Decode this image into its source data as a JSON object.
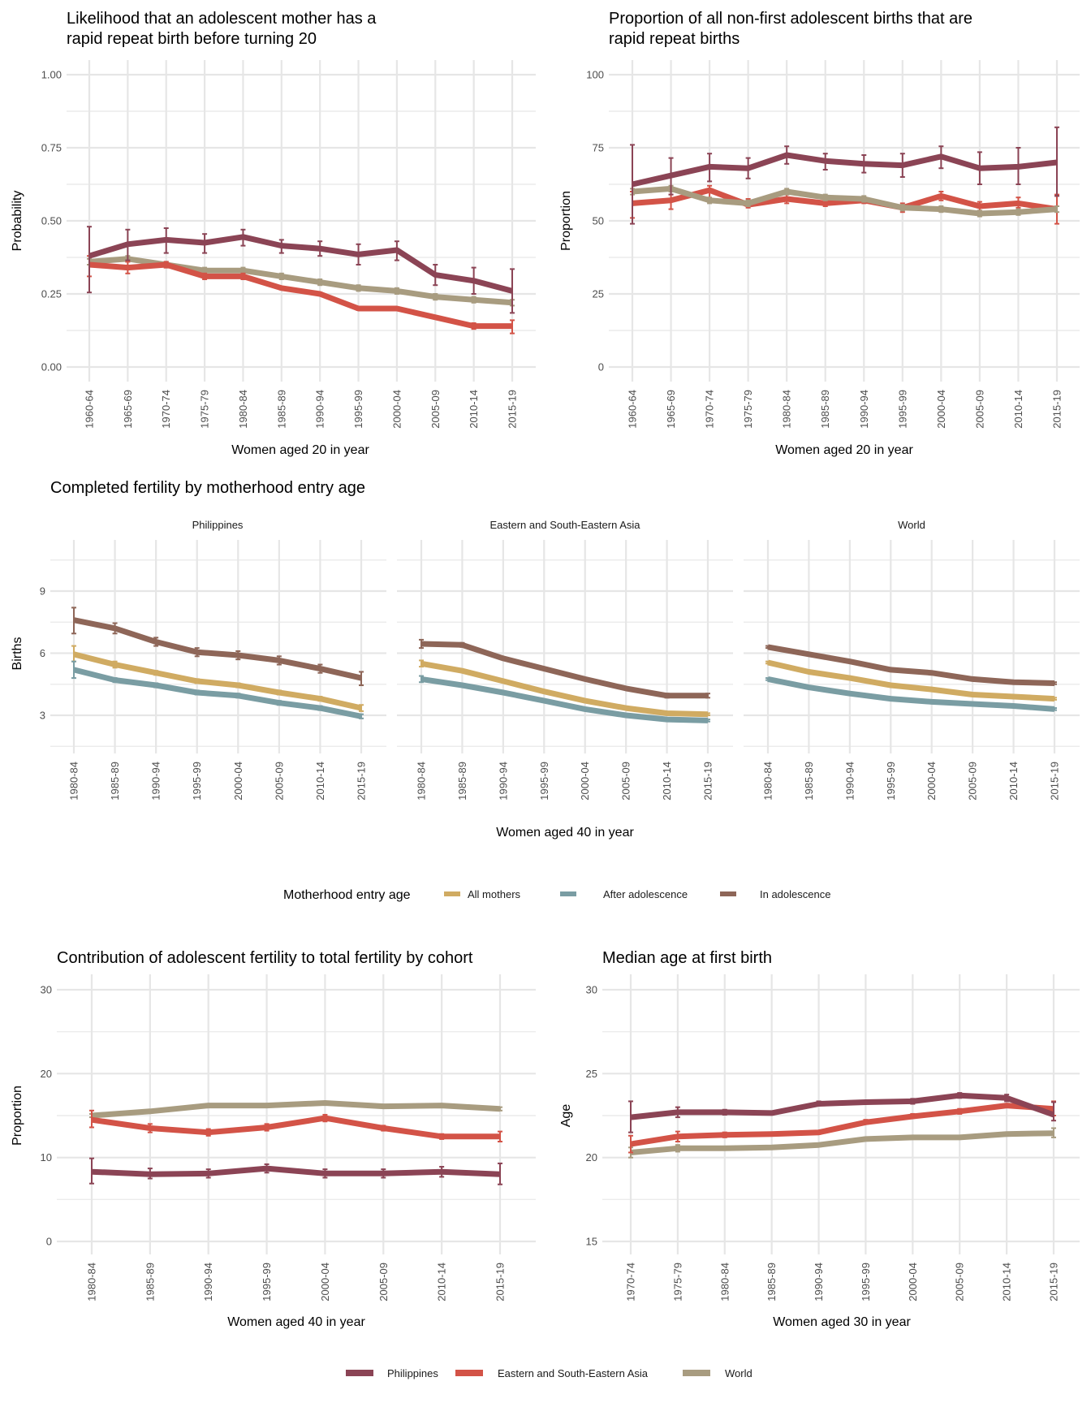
{
  "colors": {
    "Philippines": "#8b4455",
    "Eastern and South-Eastern Asia": "#d35347",
    "World": "#a89c80",
    "All mothers": "#d0ab62",
    "After adolescence": "#7a9da3",
    "In adolescence": "#8e6658"
  },
  "legend_region": {
    "items": [
      "Philippines",
      "Eastern and South-Eastern Asia",
      "World"
    ]
  },
  "legend_entry_age": {
    "title": "Motherhood entry age",
    "items": [
      "All mothers",
      "After adolescence",
      "In adolescence"
    ]
  },
  "chart_data": [
    {
      "id": "rapid-repeat-likelihood",
      "type": "line",
      "title": "Likelihood that an adolescent mother has a rapid repeat birth before turning 20",
      "title_lines": [
        "Likelihood that an adolescent mother has a",
        "rapid repeat birth before turning 20"
      ],
      "xlabel": "Women aged 20 in year",
      "ylabel": "Probability",
      "ylim": [
        0,
        1
      ],
      "yticks": [
        0,
        0.25,
        0.5,
        0.75,
        1.0
      ],
      "ytick_labels": [
        "0.00",
        "0.25",
        "0.50",
        "0.75",
        "1.00"
      ],
      "grid": true,
      "categories": [
        "1960-64",
        "1965-69",
        "1970-74",
        "1975-79",
        "1980-84",
        "1985-89",
        "1990-94",
        "1995-99",
        "2000-04",
        "2005-09",
        "2010-14",
        "2015-19"
      ],
      "series": [
        {
          "name": "World",
          "values": [
            0.36,
            0.37,
            0.35,
            0.33,
            0.33,
            0.31,
            0.29,
            0.27,
            0.26,
            0.24,
            0.23,
            0.22
          ],
          "lower": [
            0.35,
            0.36,
            0.34,
            0.32,
            0.32,
            0.3,
            0.28,
            0.26,
            0.25,
            0.23,
            0.22,
            0.21
          ],
          "upper": [
            0.37,
            0.38,
            0.36,
            0.34,
            0.34,
            0.32,
            0.3,
            0.28,
            0.27,
            0.25,
            0.24,
            0.23
          ]
        },
        {
          "name": "Eastern and South-Eastern Asia",
          "values": [
            0.35,
            0.34,
            0.35,
            0.31,
            0.31,
            0.27,
            0.25,
            0.2,
            0.2,
            0.17,
            0.14,
            0.14
          ],
          "lower": [
            0.31,
            0.32,
            0.34,
            0.3,
            0.3,
            0.265,
            0.245,
            0.195,
            0.195,
            0.165,
            0.13,
            0.115
          ],
          "upper": [
            0.38,
            0.36,
            0.36,
            0.32,
            0.32,
            0.275,
            0.255,
            0.205,
            0.205,
            0.175,
            0.15,
            0.16
          ]
        },
        {
          "name": "Philippines",
          "values": [
            0.38,
            0.42,
            0.435,
            0.425,
            0.445,
            0.415,
            0.405,
            0.385,
            0.4,
            0.315,
            0.295,
            0.26
          ],
          "lower": [
            0.255,
            0.365,
            0.39,
            0.39,
            0.415,
            0.39,
            0.38,
            0.35,
            0.365,
            0.28,
            0.25,
            0.185
          ],
          "upper": [
            0.48,
            0.47,
            0.475,
            0.455,
            0.47,
            0.435,
            0.43,
            0.42,
            0.43,
            0.35,
            0.34,
            0.335
          ]
        }
      ]
    },
    {
      "id": "rapid-repeat-proportion",
      "type": "line",
      "title": "Proportion of all non-first adolescent births that are rapid repeat births",
      "title_lines": [
        "Proportion of all non-first adolescent births that are",
        "rapid repeat births"
      ],
      "xlabel": "Women aged 20 in year",
      "ylabel": "Proportion",
      "ylim": [
        0,
        100
      ],
      "yticks": [
        0,
        25,
        50,
        75,
        100
      ],
      "ytick_labels": [
        "0",
        "25",
        "50",
        "75",
        "100"
      ],
      "grid": true,
      "categories": [
        "1960-64",
        "1965-69",
        "1970-74",
        "1975-79",
        "1980-84",
        "1985-89",
        "1990-94",
        "1995-99",
        "2000-04",
        "2005-09",
        "2010-14",
        "2015-19"
      ],
      "series": [
        {
          "name": "Eastern and South-Eastern Asia",
          "values": [
            56,
            57,
            60.5,
            55.5,
            57.5,
            56,
            57,
            54.5,
            58.5,
            55,
            56,
            54
          ],
          "lower": [
            51,
            54,
            57,
            54.5,
            56,
            55,
            56,
            53,
            57,
            53.5,
            54.5,
            49
          ],
          "upper": [
            60,
            59,
            62,
            57.5,
            59,
            57,
            58,
            56,
            60,
            56.5,
            58,
            59
          ]
        },
        {
          "name": "World",
          "values": [
            60,
            61,
            57,
            56,
            60,
            58,
            57.5,
            54.5,
            54,
            52.5,
            53,
            54
          ],
          "lower": [
            59,
            60,
            56,
            55,
            59,
            57,
            56.5,
            53.5,
            53,
            51.5,
            52,
            53
          ],
          "upper": [
            61,
            62,
            58,
            57,
            61,
            59,
            58.5,
            55.5,
            55,
            53.5,
            54,
            55
          ]
        },
        {
          "name": "Philippines",
          "values": [
            62.5,
            65.5,
            68.5,
            68,
            72.5,
            70.5,
            69.5,
            69,
            72,
            68,
            68.5,
            70
          ],
          "lower": [
            49,
            59,
            63.5,
            64.5,
            69.5,
            67.5,
            66.5,
            65,
            68,
            62.5,
            62.5,
            58.5
          ],
          "upper": [
            76,
            71.5,
            73,
            71.5,
            75.5,
            73,
            72.5,
            73,
            75.5,
            73.5,
            75,
            82
          ]
        }
      ]
    },
    {
      "id": "completed-fertility",
      "type": "line",
      "title": "Completed fertility by motherhood entry age",
      "xlabel": "Women aged 40 in year",
      "ylabel": "Births",
      "ylim": [
        1.2,
        11.5
      ],
      "yticks": [
        3,
        6,
        9
      ],
      "ytick_labels": [
        "3",
        "6",
        "9"
      ],
      "grid": true,
      "legend": "bottom",
      "categories": [
        "1980-84",
        "1985-89",
        "1990-94",
        "1995-99",
        "2000-04",
        "2005-09",
        "2010-14",
        "2015-19"
      ],
      "facets": [
        {
          "name": "Philippines",
          "series": [
            {
              "name": "All mothers",
              "values": [
                5.95,
                5.45,
                5.05,
                4.65,
                4.45,
                4.1,
                3.8,
                3.35
              ],
              "lower": [
                5.6,
                5.3,
                4.95,
                4.55,
                4.35,
                4.0,
                3.7,
                3.2
              ],
              "upper": [
                6.35,
                5.6,
                5.15,
                4.75,
                4.55,
                4.2,
                3.9,
                3.5
              ]
            },
            {
              "name": "After adolescence",
              "values": [
                5.2,
                4.7,
                4.45,
                4.1,
                3.95,
                3.6,
                3.35,
                2.95
              ],
              "lower": [
                4.8,
                4.6,
                4.35,
                4.0,
                3.85,
                3.5,
                3.25,
                2.85
              ],
              "upper": [
                5.6,
                4.8,
                4.55,
                4.2,
                4.05,
                3.7,
                3.45,
                3.05
              ]
            },
            {
              "name": "In adolescence",
              "values": [
                7.6,
                7.2,
                6.55,
                6.05,
                5.9,
                5.65,
                5.25,
                4.8
              ],
              "lower": [
                6.95,
                6.95,
                6.35,
                5.85,
                5.7,
                5.45,
                5.05,
                4.45
              ],
              "upper": [
                8.2,
                7.45,
                6.75,
                6.25,
                6.1,
                5.85,
                5.45,
                5.1
              ]
            }
          ]
        },
        {
          "name": "Eastern and South-Eastern Asia",
          "series": [
            {
              "name": "All mothers",
              "values": [
                5.5,
                5.15,
                4.65,
                4.15,
                3.7,
                3.35,
                3.1,
                3.05
              ],
              "lower": [
                5.35,
                5.1,
                4.6,
                4.1,
                3.65,
                3.3,
                3.05,
                3.0
              ],
              "upper": [
                5.65,
                5.2,
                4.7,
                4.2,
                3.75,
                3.4,
                3.15,
                3.1
              ]
            },
            {
              "name": "After adolescence",
              "values": [
                4.75,
                4.45,
                4.1,
                3.7,
                3.3,
                3.0,
                2.8,
                2.75
              ],
              "lower": [
                4.6,
                4.4,
                4.05,
                3.65,
                3.25,
                2.95,
                2.75,
                2.7
              ],
              "upper": [
                4.9,
                4.5,
                4.15,
                3.75,
                3.35,
                3.05,
                2.85,
                2.8
              ]
            },
            {
              "name": "In adolescence",
              "values": [
                6.45,
                6.4,
                5.75,
                5.25,
                4.75,
                4.3,
                3.95,
                3.95
              ],
              "lower": [
                6.25,
                6.3,
                5.7,
                5.2,
                4.7,
                4.25,
                3.85,
                3.85
              ],
              "upper": [
                6.65,
                6.5,
                5.8,
                5.3,
                4.8,
                4.35,
                4.05,
                4.05
              ]
            }
          ]
        },
        {
          "name": "World",
          "series": [
            {
              "name": "All mothers",
              "values": [
                5.55,
                5.1,
                4.8,
                4.45,
                4.25,
                4.0,
                3.9,
                3.8
              ],
              "lower": [
                5.5,
                5.05,
                4.75,
                4.4,
                4.2,
                3.95,
                3.85,
                3.75
              ],
              "upper": [
                5.6,
                5.15,
                4.85,
                4.5,
                4.3,
                4.05,
                3.95,
                3.85
              ]
            },
            {
              "name": "After adolescence",
              "values": [
                4.75,
                4.35,
                4.05,
                3.8,
                3.65,
                3.55,
                3.45,
                3.3
              ],
              "lower": [
                4.7,
                4.3,
                4.0,
                3.75,
                3.6,
                3.5,
                3.4,
                3.25
              ],
              "upper": [
                4.8,
                4.4,
                4.1,
                3.85,
                3.7,
                3.6,
                3.5,
                3.35
              ]
            },
            {
              "name": "In adolescence",
              "values": [
                6.3,
                5.95,
                5.6,
                5.2,
                5.05,
                4.75,
                4.6,
                4.55
              ],
              "lower": [
                6.25,
                5.9,
                5.55,
                5.15,
                5.0,
                4.7,
                4.55,
                4.5
              ],
              "upper": [
                6.35,
                6.0,
                5.65,
                5.25,
                5.1,
                4.8,
                4.65,
                4.6
              ]
            }
          ]
        }
      ]
    },
    {
      "id": "adolescent-contribution",
      "type": "line",
      "title": "Contribution of adolescent fertility to total fertility by cohort",
      "xlabel": "Women aged 40 in year",
      "ylabel": "Proportion",
      "ylim": [
        0,
        30
      ],
      "yticks": [
        0,
        10,
        20,
        30
      ],
      "ytick_labels": [
        "0",
        "10",
        "20",
        "30"
      ],
      "grid": true,
      "categories": [
        "1980-84",
        "1985-89",
        "1990-94",
        "1995-99",
        "2000-04",
        "2005-09",
        "2010-14",
        "2015-19"
      ],
      "series": [
        {
          "name": "World",
          "values": [
            15.0,
            15.5,
            16.2,
            16.2,
            16.5,
            16.1,
            16.2,
            15.8
          ],
          "lower": [
            14.8,
            15.4,
            16.1,
            16.1,
            16.4,
            16.0,
            16.1,
            15.6
          ],
          "upper": [
            15.2,
            15.6,
            16.3,
            16.3,
            16.6,
            16.2,
            16.3,
            16.0
          ]
        },
        {
          "name": "Eastern and South-Eastern Asia",
          "values": [
            14.5,
            13.5,
            13.0,
            13.6,
            14.7,
            13.5,
            12.5,
            12.5
          ],
          "lower": [
            13.6,
            13.0,
            12.6,
            13.2,
            14.3,
            13.2,
            12.2,
            11.9
          ],
          "upper": [
            15.6,
            14.0,
            13.4,
            14.0,
            15.1,
            13.8,
            12.8,
            13.1
          ]
        },
        {
          "name": "Philippines",
          "values": [
            8.3,
            8.0,
            8.1,
            8.7,
            8.1,
            8.1,
            8.3,
            8.0
          ],
          "lower": [
            6.9,
            7.5,
            7.6,
            8.2,
            7.6,
            7.6,
            7.7,
            6.8
          ],
          "upper": [
            9.9,
            8.7,
            8.6,
            9.2,
            8.6,
            8.6,
            8.9,
            9.3
          ]
        }
      ]
    },
    {
      "id": "median-age-first-birth",
      "type": "line",
      "title": "Median age at first birth",
      "xlabel": "Women aged 30 in year",
      "ylabel": "Age",
      "ylim": [
        15,
        30
      ],
      "yticks": [
        15,
        20,
        25,
        30
      ],
      "ytick_labels": [
        "15",
        "20",
        "25",
        "30"
      ],
      "grid": true,
      "categories": [
        "1970-74",
        "1975-79",
        "1980-84",
        "1985-89",
        "1990-94",
        "1995-99",
        "2000-04",
        "2005-09",
        "2010-14",
        "2015-19"
      ],
      "series": [
        {
          "name": "World",
          "values": [
            20.3,
            20.55,
            20.55,
            20.6,
            20.75,
            21.1,
            21.2,
            21.2,
            21.4,
            21.45
          ],
          "lower": [
            20.0,
            20.35,
            20.45,
            20.5,
            20.65,
            21.0,
            21.1,
            21.1,
            21.3,
            21.2
          ],
          "upper": [
            20.6,
            20.75,
            20.65,
            20.7,
            20.85,
            21.2,
            21.3,
            21.3,
            21.5,
            21.75
          ]
        },
        {
          "name": "Eastern and South-Eastern Asia",
          "values": [
            20.8,
            21.25,
            21.35,
            21.4,
            21.5,
            22.1,
            22.45,
            22.75,
            23.1,
            22.9
          ],
          "lower": [
            20.3,
            20.95,
            21.2,
            21.3,
            21.4,
            22.0,
            22.35,
            22.6,
            23.0,
            22.5
          ],
          "upper": [
            21.3,
            21.55,
            21.5,
            21.5,
            21.6,
            22.25,
            22.6,
            22.9,
            23.2,
            23.35
          ]
        },
        {
          "name": "Philippines",
          "values": [
            22.4,
            22.7,
            22.7,
            22.65,
            23.2,
            23.3,
            23.35,
            23.7,
            23.55,
            22.55
          ],
          "lower": [
            21.5,
            22.4,
            22.55,
            22.55,
            23.1,
            23.2,
            23.2,
            23.55,
            23.35,
            22.2
          ],
          "upper": [
            23.35,
            23.0,
            22.85,
            22.75,
            23.35,
            23.4,
            23.5,
            23.85,
            23.75,
            23.3
          ]
        }
      ]
    }
  ]
}
